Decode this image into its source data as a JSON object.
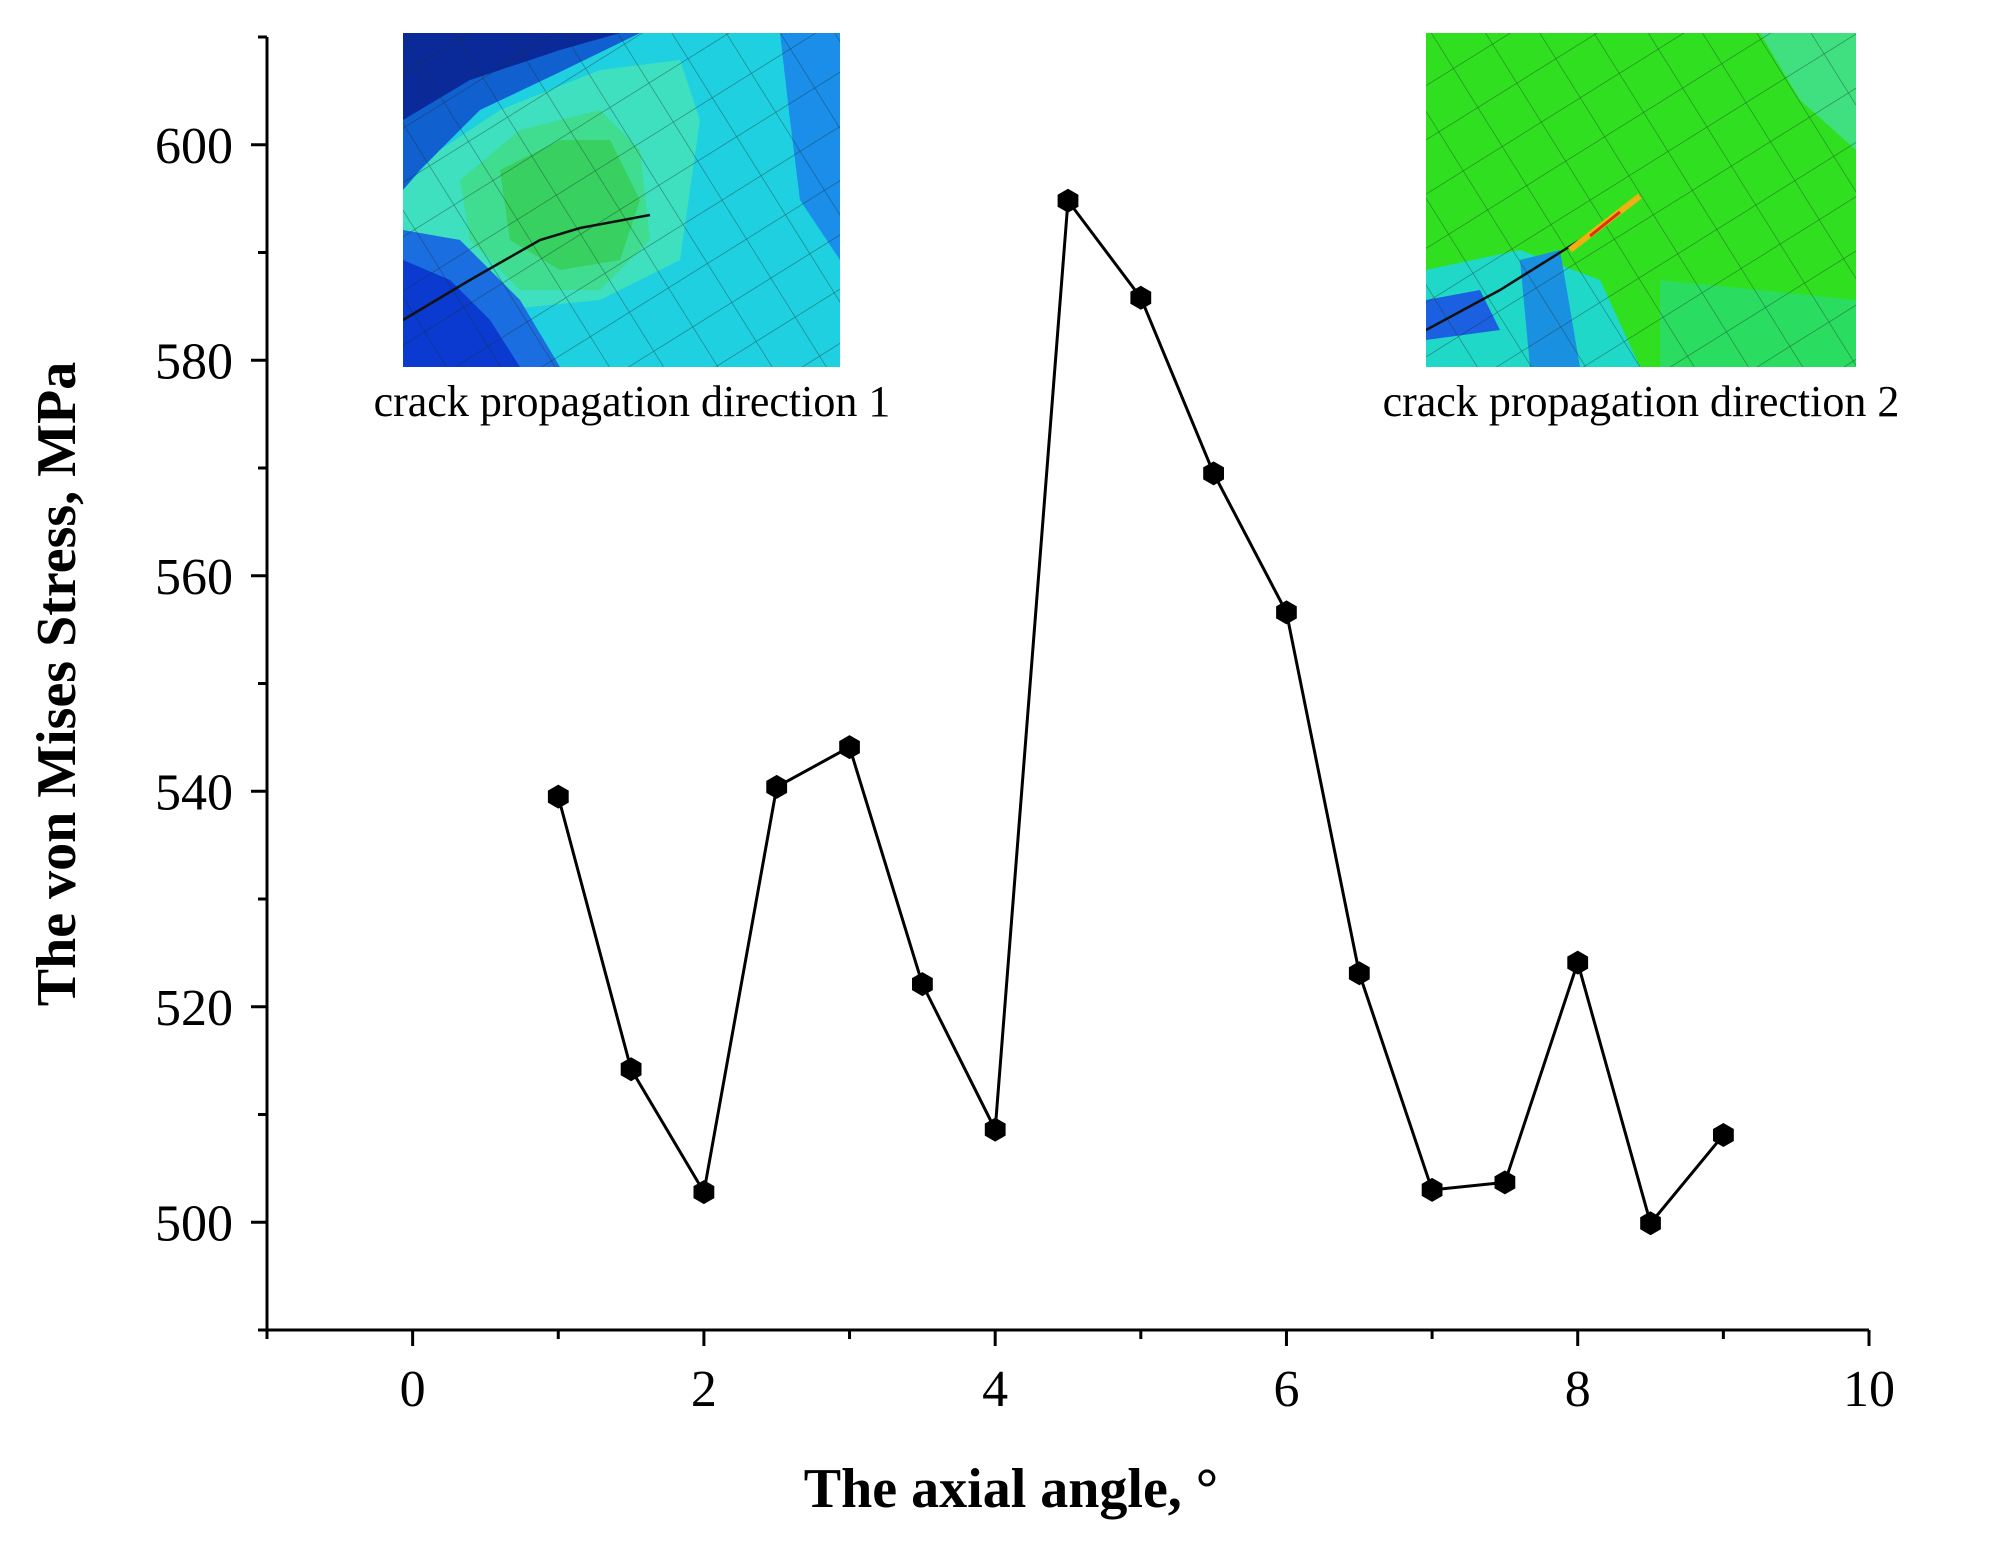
{
  "chart_data": {
    "type": "line",
    "title": "",
    "xlabel": "The axial angle, °",
    "ylabel": "The von Mises Stress, MPa",
    "xlim": [
      -1,
      10
    ],
    "ylim": [
      490,
      610
    ],
    "xticks": [
      0,
      2,
      4,
      6,
      8,
      10
    ],
    "yticks": [
      500,
      520,
      540,
      560,
      580,
      600
    ],
    "grid": false,
    "marker": "hexagon",
    "series": [
      {
        "name": "von Mises stress",
        "color": "#000000",
        "x": [
          1,
          1.5,
          2,
          2.5,
          3,
          3.5,
          4,
          4.5,
          5,
          5.5,
          6,
          6.5,
          7,
          7.5,
          8,
          8.5,
          9
        ],
        "y": [
          539.5,
          514.2,
          502.8,
          540.4,
          544.1,
          522.1,
          508.6,
          594.8,
          585.8,
          569.5,
          556.6,
          523.1,
          503.0,
          503.7,
          524.1,
          499.9,
          508.1
        ]
      }
    ],
    "insets": [
      {
        "caption": "crack propagation direction 1",
        "description": "stress contour near crack tip"
      },
      {
        "caption": "crack propagation direction 2",
        "description": "stress contour near crack tip"
      }
    ]
  }
}
